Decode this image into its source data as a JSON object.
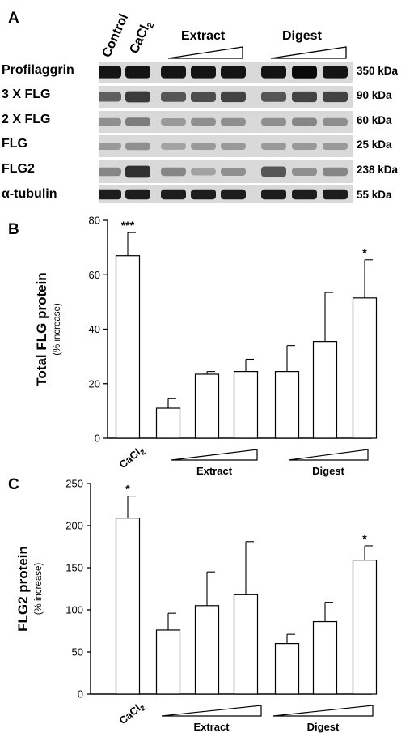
{
  "panel_a": {
    "letter": "A",
    "lane_headers": [
      "Control",
      "CaCl",
      "2"
    ],
    "group_headers": [
      "Extract",
      "Digest"
    ],
    "rows": [
      {
        "label": "Profilaggrin",
        "size": "350 kDa"
      },
      {
        "label": "3 X FLG",
        "size": "90 kDa"
      },
      {
        "label": "2 X FLG",
        "size": "60 kDa"
      },
      {
        "label": "FLG",
        "size": "25 kDa"
      },
      {
        "label": "FLG2",
        "size": "238 kDa"
      },
      {
        "label": "α-tubulin",
        "size": "55 kDa"
      }
    ]
  },
  "chart_data": [
    {
      "type": "bar",
      "panel": "B",
      "ylabel": "Total FLG protein",
      "ylabel_sub": "(% increase)",
      "ylim": [
        0,
        80
      ],
      "yticks": [
        0,
        20,
        40,
        60,
        80
      ],
      "categories": [
        "CaCl2",
        "Extract 1",
        "Extract 2",
        "Extract 3",
        "Digest 1",
        "Digest 2",
        "Digest 3"
      ],
      "values": [
        67,
        11,
        23.5,
        24.5,
        24.5,
        35.5,
        51.5
      ],
      "errors": [
        8.5,
        3.5,
        1,
        4.5,
        9.5,
        18,
        14
      ],
      "annotations": [
        "***",
        "",
        "",
        "",
        "",
        "",
        "*"
      ],
      "category_label": "CaCl",
      "category_label_sub": "2",
      "group_labels": [
        "Extract",
        "Digest"
      ]
    },
    {
      "type": "bar",
      "panel": "C",
      "ylabel": "FLG2 protein",
      "ylabel_sub": "(% increase)",
      "ylim": [
        0,
        250
      ],
      "yticks": [
        0,
        50,
        100,
        150,
        200,
        250
      ],
      "categories": [
        "CaCl2",
        "Extract 1",
        "Extract 2",
        "Extract 3",
        "Digest 1",
        "Digest 2",
        "Digest 3"
      ],
      "values": [
        209,
        76,
        105,
        118,
        60,
        86,
        159
      ],
      "errors": [
        26,
        20,
        40,
        63,
        11,
        23,
        17
      ],
      "annotations": [
        "*",
        "",
        "",
        "",
        "",
        "",
        "*"
      ],
      "category_label": "CaCl",
      "category_label_sub": "2",
      "group_labels": [
        "Extract",
        "Digest"
      ]
    }
  ]
}
